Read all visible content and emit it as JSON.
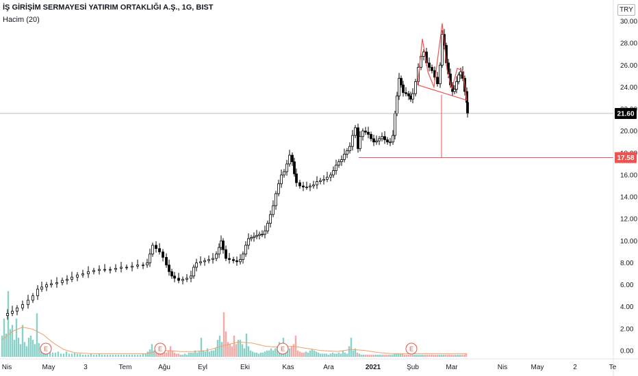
{
  "header": {
    "symbol_line": "İŞ GİRİŞİM SERMAYESİ YATIRIM ORTAKLIĞI A.Ş., 1G, BIST",
    "indicator": "Hacim (20)",
    "currency": "TRY"
  },
  "chart_data": {
    "type": "candlestick",
    "price_axis": {
      "range": [
        0,
        30
      ],
      "ticks": [
        "30.00",
        "28.00",
        "26.00",
        "24.00",
        "22.00",
        "20.00",
        "18.00",
        "16.00",
        "14.00",
        "12.00",
        "10.00",
        "8.00",
        "6.00",
        "4.00",
        "2.00",
        "0.00"
      ],
      "tick_values": [
        30,
        28,
        26,
        24,
        22,
        20,
        18,
        16,
        14,
        12,
        10,
        8,
        6,
        4,
        2,
        0
      ]
    },
    "time_axis": {
      "labels": [
        "Nis",
        "May",
        "3",
        "Tem",
        "Ağu",
        "Eyl",
        "Eki",
        "Kas",
        "Ara",
        "2021",
        "Şub",
        "Mar",
        "Nis",
        "May",
        "2",
        "Te"
      ],
      "bold": [
        "2021"
      ]
    },
    "last_price": {
      "label": "21.60",
      "value": 21.6,
      "color": "#000000"
    },
    "target_price": {
      "label": "17.58",
      "value": 17.58,
      "color": "#ef5350"
    },
    "price_path": [
      [
        0,
        3.2
      ],
      [
        8,
        3.4
      ],
      [
        15,
        3.6
      ],
      [
        22,
        3.9
      ],
      [
        30,
        4.2
      ],
      [
        38,
        4.6
      ],
      [
        45,
        5.0
      ],
      [
        52,
        5.6
      ],
      [
        58,
        5.8
      ],
      [
        65,
        6.0
      ],
      [
        72,
        6.1
      ],
      [
        80,
        6.2
      ],
      [
        88,
        6.4
      ],
      [
        95,
        6.5
      ],
      [
        102,
        6.7
      ],
      [
        110,
        6.9
      ],
      [
        118,
        7.0
      ],
      [
        126,
        7.2
      ],
      [
        134,
        7.3
      ],
      [
        142,
        7.4
      ],
      [
        150,
        7.4
      ],
      [
        158,
        7.4
      ],
      [
        166,
        7.5
      ],
      [
        174,
        7.6
      ],
      [
        182,
        7.6
      ],
      [
        190,
        7.7
      ],
      [
        198,
        7.8
      ],
      [
        206,
        7.8
      ],
      [
        212,
        8.0
      ],
      [
        216,
        8.8
      ],
      [
        220,
        9.6
      ],
      [
        225,
        9.3
      ],
      [
        230,
        9.0
      ],
      [
        235,
        8.5
      ],
      [
        240,
        7.8
      ],
      [
        244,
        7.2
      ],
      [
        248,
        6.8
      ],
      [
        252,
        6.6
      ],
      [
        258,
        6.4
      ],
      [
        264,
        6.5
      ],
      [
        270,
        6.6
      ],
      [
        276,
        6.8
      ],
      [
        280,
        7.6
      ],
      [
        284,
        8.0
      ],
      [
        290,
        8.1
      ],
      [
        296,
        8.2
      ],
      [
        302,
        8.3
      ],
      [
        308,
        8.4
      ],
      [
        313,
        8.8
      ],
      [
        317,
        9.4
      ],
      [
        320,
        10.0
      ],
      [
        323,
        9.2
      ],
      [
        327,
        8.4
      ],
      [
        332,
        8.3
      ],
      [
        338,
        8.2
      ],
      [
        343,
        8.1
      ],
      [
        348,
        8.3
      ],
      [
        352,
        8.8
      ],
      [
        356,
        9.6
      ],
      [
        360,
        10.2
      ],
      [
        364,
        10.3
      ],
      [
        368,
        10.4
      ],
      [
        372,
        10.5
      ],
      [
        376,
        10.6
      ],
      [
        380,
        10.6
      ],
      [
        384,
        10.9
      ],
      [
        388,
        11.6
      ],
      [
        392,
        12.4
      ],
      [
        396,
        13.2
      ],
      [
        400,
        14.3
      ],
      [
        404,
        15.2
      ],
      [
        408,
        16.0
      ],
      [
        412,
        16.3
      ],
      [
        416,
        17.0
      ],
      [
        420,
        17.8
      ],
      [
        424,
        17.2
      ],
      [
        427,
        16.1
      ],
      [
        430,
        15.3
      ],
      [
        435,
        15.0
      ],
      [
        440,
        14.9
      ],
      [
        445,
        14.9
      ],
      [
        450,
        15.0
      ],
      [
        455,
        15.1
      ],
      [
        460,
        15.4
      ],
      [
        465,
        15.5
      ],
      [
        470,
        15.6
      ],
      [
        475,
        15.8
      ],
      [
        480,
        16.0
      ],
      [
        484,
        16.4
      ],
      [
        488,
        16.9
      ],
      [
        492,
        17.2
      ],
      [
        496,
        17.4
      ],
      [
        500,
        17.9
      ],
      [
        504,
        18.2
      ],
      [
        508,
        18.6
      ],
      [
        512,
        19.6
      ],
      [
        516,
        20.3
      ],
      [
        520,
        18.4
      ],
      [
        523,
        19.5
      ],
      [
        527,
        20.0
      ],
      [
        531,
        19.9
      ],
      [
        535,
        19.7
      ],
      [
        539,
        19.3
      ],
      [
        543,
        19.0
      ],
      [
        547,
        19.1
      ],
      [
        551,
        19.3
      ],
      [
        555,
        19.5
      ],
      [
        559,
        19.2
      ],
      [
        563,
        19.0
      ],
      [
        567,
        19.0
      ],
      [
        571,
        19.6
      ],
      [
        574,
        21.6
      ],
      [
        577,
        23.2
      ],
      [
        580,
        24.8
      ],
      [
        583,
        24.2
      ],
      [
        586,
        23.5
      ],
      [
        590,
        23.4
      ],
      [
        594,
        23.2
      ],
      [
        597,
        22.9
      ],
      [
        600,
        23.4
      ],
      [
        604,
        24.5
      ],
      [
        608,
        25.8
      ],
      [
        612,
        26.8
      ],
      [
        616,
        27.2
      ],
      [
        620,
        26.2
      ],
      [
        624,
        25.8
      ],
      [
        628,
        25.5
      ],
      [
        632,
        24.9
      ],
      [
        636,
        24.3
      ],
      [
        640,
        26.0
      ],
      [
        643,
        28.8
      ],
      [
        646,
        27.8
      ],
      [
        649,
        26.2
      ],
      [
        652,
        25.2
      ],
      [
        655,
        24.2
      ],
      [
        658,
        23.6
      ],
      [
        661,
        23.8
      ],
      [
        664,
        24.5
      ],
      [
        667,
        25.1
      ],
      [
        670,
        25.4
      ],
      [
        673,
        24.8
      ],
      [
        676,
        23.6
      ],
      [
        679,
        22.6
      ],
      [
        680,
        21.6
      ]
    ],
    "volume_axis_range": [
      0,
      8.5
    ],
    "volume_bars": [
      [
        0,
        2.0
      ],
      [
        3,
        3.6
      ],
      [
        6,
        2.2
      ],
      [
        9,
        6.2
      ],
      [
        12,
        2.6
      ],
      [
        15,
        3.0
      ],
      [
        18,
        1.6
      ],
      [
        21,
        3.6
      ],
      [
        24,
        1.8
      ],
      [
        27,
        1.2
      ],
      [
        30,
        3.0
      ],
      [
        33,
        1.4
      ],
      [
        36,
        1.0
      ],
      [
        39,
        1.8
      ],
      [
        42,
        2.0
      ],
      [
        45,
        1.6
      ],
      [
        48,
        1.2
      ],
      [
        51,
        4.1
      ],
      [
        54,
        1.3
      ],
      [
        57,
        0.8
      ],
      [
        60,
        0.9
      ],
      [
        63,
        0.6
      ],
      [
        66,
        0.6
      ],
      [
        70,
        0.5
      ],
      [
        74,
        0.4
      ],
      [
        78,
        0.4
      ],
      [
        82,
        0.5
      ],
      [
        86,
        0.3
      ],
      [
        90,
        0.3
      ],
      [
        94,
        0.5
      ],
      [
        98,
        0.3
      ],
      [
        102,
        0.3
      ],
      [
        106,
        0.4
      ],
      [
        110,
        0.3
      ],
      [
        114,
        0.3
      ],
      [
        118,
        0.2
      ],
      [
        122,
        0.2
      ],
      [
        126,
        0.2
      ],
      [
        130,
        0.3
      ],
      [
        134,
        0.2
      ],
      [
        138,
        0.2
      ],
      [
        142,
        0.3
      ],
      [
        146,
        0.2
      ],
      [
        150,
        0.2
      ],
      [
        154,
        0.2
      ],
      [
        158,
        0.2
      ],
      [
        162,
        0.2
      ],
      [
        166,
        0.2
      ],
      [
        170,
        0.2
      ],
      [
        174,
        0.2
      ],
      [
        178,
        0.2
      ],
      [
        182,
        0.2
      ],
      [
        186,
        0.2
      ],
      [
        190,
        0.2
      ],
      [
        194,
        0.2
      ],
      [
        198,
        0.2
      ],
      [
        202,
        0.2
      ],
      [
        206,
        0.3
      ],
      [
        210,
        0.3
      ],
      [
        213,
        0.5
      ],
      [
        216,
        0.7
      ],
      [
        219,
        1.2
      ],
      [
        222,
        0.6
      ],
      [
        225,
        0.5
      ],
      [
        228,
        0.4
      ],
      [
        231,
        0.3
      ],
      [
        234,
        0.5
      ],
      [
        237,
        0.6
      ],
      [
        240,
        0.4
      ],
      [
        243,
        0.6
      ],
      [
        246,
        1.0
      ],
      [
        249,
        0.6
      ],
      [
        252,
        0.4
      ],
      [
        255,
        0.3
      ],
      [
        258,
        0.3
      ],
      [
        261,
        0.2
      ],
      [
        264,
        0.2
      ],
      [
        267,
        0.3
      ],
      [
        270,
        0.2
      ],
      [
        273,
        0.4
      ],
      [
        276,
        0.4
      ],
      [
        279,
        0.4
      ],
      [
        282,
        0.6
      ],
      [
        285,
        0.4
      ],
      [
        288,
        0.5
      ],
      [
        291,
        1.8
      ],
      [
        294,
        0.6
      ],
      [
        297,
        0.5
      ],
      [
        300,
        0.8
      ],
      [
        303,
        0.5
      ],
      [
        306,
        0.6
      ],
      [
        309,
        0.6
      ],
      [
        312,
        0.8
      ],
      [
        315,
        1.6
      ],
      [
        318,
        2.0
      ],
      [
        321,
        1.4
      ],
      [
        324,
        4.2
      ],
      [
        327,
        2.4
      ],
      [
        330,
        1.4
      ],
      [
        333,
        1.2
      ],
      [
        336,
        1.0
      ],
      [
        339,
        2.0
      ],
      [
        342,
        1.2
      ],
      [
        345,
        1.6
      ],
      [
        348,
        1.6
      ],
      [
        351,
        1.2
      ],
      [
        354,
        0.8
      ],
      [
        357,
        2.2
      ],
      [
        360,
        1.0
      ],
      [
        363,
        0.6
      ],
      [
        366,
        0.5
      ],
      [
        369,
        0.4
      ],
      [
        372,
        0.4
      ],
      [
        375,
        0.3
      ],
      [
        378,
        0.4
      ],
      [
        381,
        0.4
      ],
      [
        384,
        0.5
      ],
      [
        387,
        0.6
      ],
      [
        390,
        0.6
      ],
      [
        393,
        0.8
      ],
      [
        396,
        0.6
      ],
      [
        399,
        0.8
      ],
      [
        402,
        1.0
      ],
      [
        405,
        1.4
      ],
      [
        408,
        0.8
      ],
      [
        411,
        1.8
      ],
      [
        414,
        1.2
      ],
      [
        417,
        1.0
      ],
      [
        420,
        0.8
      ],
      [
        423,
        1.0
      ],
      [
        426,
        1.2
      ],
      [
        429,
        2.0
      ],
      [
        432,
        0.6
      ],
      [
        435,
        0.5
      ],
      [
        438,
        0.4
      ],
      [
        441,
        0.4
      ],
      [
        444,
        0.5
      ],
      [
        447,
        0.4
      ],
      [
        450,
        0.6
      ],
      [
        453,
        0.7
      ],
      [
        456,
        0.6
      ],
      [
        459,
        0.5
      ],
      [
        462,
        0.4
      ],
      [
        465,
        0.3
      ],
      [
        468,
        0.3
      ],
      [
        471,
        0.3
      ],
      [
        474,
        0.3
      ],
      [
        477,
        0.2
      ],
      [
        480,
        0.3
      ],
      [
        483,
        0.4
      ],
      [
        486,
        0.3
      ],
      [
        489,
        0.3
      ],
      [
        492,
        0.4
      ],
      [
        495,
        0.3
      ],
      [
        498,
        0.6
      ],
      [
        501,
        0.4
      ],
      [
        504,
        0.3
      ],
      [
        507,
        1.0
      ],
      [
        510,
        1.8
      ],
      [
        513,
        0.6
      ],
      [
        516,
        0.8
      ],
      [
        519,
        0.4
      ],
      [
        522,
        0.3
      ],
      [
        525,
        0.2
      ],
      [
        528,
        0.2
      ],
      [
        531,
        0.2
      ],
      [
        534,
        0.2
      ],
      [
        537,
        0.2
      ],
      [
        540,
        0.2
      ],
      [
        543,
        0.2
      ],
      [
        546,
        0.2
      ],
      [
        549,
        0.2
      ],
      [
        552,
        0.2
      ],
      [
        555,
        0.2
      ],
      [
        558,
        0.2
      ],
      [
        561,
        0.2
      ],
      [
        564,
        0.2
      ],
      [
        567,
        0.2
      ],
      [
        570,
        0.2
      ],
      [
        573,
        0.3
      ],
      [
        576,
        0.3
      ],
      [
        579,
        0.3
      ],
      [
        582,
        0.3
      ],
      [
        585,
        0.3
      ],
      [
        588,
        0.2
      ],
      [
        591,
        0.2
      ],
      [
        594,
        0.2
      ],
      [
        597,
        0.2
      ],
      [
        600,
        0.2
      ],
      [
        603,
        0.2
      ],
      [
        606,
        0.2
      ],
      [
        609,
        0.2
      ],
      [
        612,
        0.2
      ],
      [
        615,
        0.2
      ],
      [
        618,
        0.2
      ],
      [
        621,
        0.2
      ],
      [
        624,
        0.2
      ],
      [
        627,
        0.2
      ],
      [
        630,
        0.2
      ],
      [
        633,
        0.2
      ],
      [
        636,
        0.2
      ],
      [
        639,
        0.2
      ],
      [
        642,
        0.2
      ],
      [
        645,
        0.2
      ],
      [
        648,
        0.2
      ],
      [
        651,
        0.2
      ],
      [
        654,
        0.2
      ],
      [
        657,
        0.2
      ],
      [
        660,
        0.2
      ],
      [
        663,
        0.2
      ],
      [
        666,
        0.2
      ],
      [
        669,
        0.2
      ],
      [
        672,
        0.2
      ],
      [
        675,
        0.2
      ],
      [
        678,
        0.3
      ]
    ],
    "volume_ma": [
      [
        0,
        1.6
      ],
      [
        15,
        2.4
      ],
      [
        30,
        2.8
      ],
      [
        45,
        2.6
      ],
      [
        60,
        2.1
      ],
      [
        75,
        1.3
      ],
      [
        90,
        0.7
      ],
      [
        105,
        0.4
      ],
      [
        130,
        0.3
      ],
      [
        170,
        0.3
      ],
      [
        210,
        0.3
      ],
      [
        225,
        0.5
      ],
      [
        240,
        0.6
      ],
      [
        260,
        0.5
      ],
      [
        280,
        0.5
      ],
      [
        300,
        0.6
      ],
      [
        320,
        1.0
      ],
      [
        345,
        1.4
      ],
      [
        365,
        1.3
      ],
      [
        385,
        1.0
      ],
      [
        405,
        0.9
      ],
      [
        425,
        1.0
      ],
      [
        445,
        0.8
      ],
      [
        465,
        0.6
      ],
      [
        490,
        0.5
      ],
      [
        510,
        0.7
      ],
      [
        530,
        0.6
      ],
      [
        550,
        0.4
      ],
      [
        570,
        0.3
      ],
      [
        600,
        0.3
      ],
      [
        640,
        0.3
      ],
      [
        679,
        0.3
      ]
    ],
    "earnings_markers": [
      {
        "label": "E",
        "x": 67
      },
      {
        "label": "E",
        "x": 234
      },
      {
        "label": "E",
        "x": 413
      },
      {
        "label": "E",
        "x": 601
      }
    ],
    "pattern": {
      "type": "head-and-shoulders",
      "color": "#ef5350",
      "outline": [
        [
          607,
          24.2
        ],
        [
          614,
          28.4
        ],
        [
          622,
          25.4
        ],
        [
          631,
          24.0
        ],
        [
          643,
          29.8
        ],
        [
          650,
          25.6
        ],
        [
          657,
          23.8
        ],
        [
          665,
          25.7
        ],
        [
          673,
          25.5
        ],
        [
          679,
          22.8
        ]
      ],
      "neckline": [
        [
          607,
          24.2
        ],
        [
          679,
          22.8
        ]
      ],
      "target_vertical_x": 642,
      "target_horizontal_from_x": 521
    },
    "colors": {
      "up": "#ffffff",
      "down": "#000000",
      "volume_up": "#89d0c8",
      "volume_down": "#f3a9a6",
      "volume_ma": "#f49d67",
      "pattern": "#ef5350",
      "last_line": "#9598a1"
    }
  }
}
